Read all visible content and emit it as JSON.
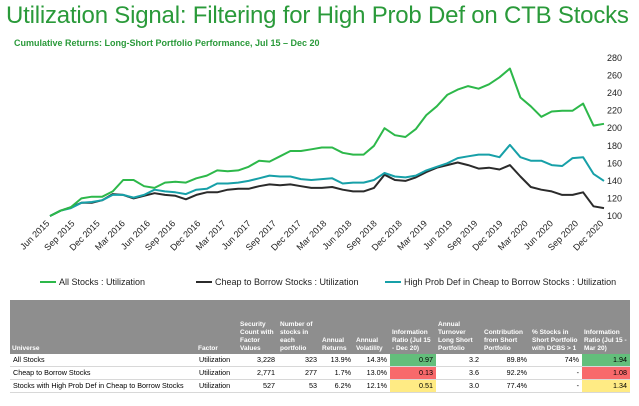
{
  "title": "Utilization Signal: Filtering for High Prob Def on CTB Stocks",
  "subtitle": "Cumulative Returns: Long-Short Portfolio Performance, Jul 15 – Dec 20",
  "colors": {
    "title": "#2a9a3a",
    "all_stocks": "#2db84a",
    "ctb": "#2b2b2b",
    "high_pd": "#17a0a8",
    "header_bg": "#8e8e8e",
    "good": "#63be7b",
    "mid": "#ffeb84",
    "bad": "#f8696b"
  },
  "chart_data": {
    "type": "line",
    "title": "Cumulative Returns: Long-Short Portfolio Performance, Jul 15 – Dec 20",
    "x_ticks": [
      "Jun 2015",
      "Sep 2015",
      "Dec 2015",
      "Mar 2016",
      "Jun 2016",
      "Sep 2016",
      "Dec 2016",
      "Mar 2017",
      "Jun 2017",
      "Sep 2017",
      "Dec 2017",
      "Mar 2018",
      "Jun 2018",
      "Sep 2018",
      "Dec 2018",
      "Mar 2019",
      "Jun 2019",
      "Sep 2019",
      "Dec 2019",
      "Mar 2020",
      "Jun 2020",
      "Sep 2020",
      "Dec 2020"
    ],
    "y_ticks": [
      100,
      120,
      140,
      160,
      180,
      200,
      220,
      240,
      260,
      280
    ],
    "ylim": [
      100,
      280
    ],
    "legend_position": "bottom",
    "grid": false,
    "series": [
      {
        "name": "All Stocks : Utilization",
        "color": "#2db84a",
        "values": [
          100,
          106,
          110,
          120,
          122,
          122,
          128,
          141,
          141,
          134,
          132,
          138,
          139,
          138,
          143,
          146,
          152,
          151,
          152,
          156,
          163,
          162,
          168,
          174,
          174,
          176,
          178,
          178,
          172,
          170,
          170,
          180,
          200,
          192,
          190,
          199,
          215,
          225,
          238,
          244,
          248,
          245,
          250,
          258,
          268,
          235,
          225,
          213,
          219,
          220,
          220,
          228,
          203,
          205
        ]
      },
      {
        "name": "Cheap to Borrow Stocks : Utilization",
        "color": "#2b2b2b",
        "values": [
          100,
          106,
          110,
          115,
          115,
          118,
          125,
          124,
          120,
          123,
          126,
          124,
          123,
          119,
          124,
          127,
          127,
          130,
          131,
          131,
          134,
          136,
          135,
          136,
          134,
          132,
          132,
          133,
          130,
          128,
          128,
          132,
          147,
          141,
          140,
          144,
          150,
          155,
          158,
          161,
          158,
          154,
          155,
          153,
          158,
          145,
          133,
          130,
          128,
          124,
          124,
          127,
          111,
          109
        ]
      },
      {
        "name": "High Prob Def in Cheap to Borrow Stocks : Utilization",
        "color": "#17a0a8",
        "values": [
          100,
          106,
          109,
          115,
          116,
          118,
          124,
          124,
          121,
          124,
          130,
          128,
          127,
          125,
          130,
          131,
          137,
          137,
          138,
          140,
          143,
          146,
          145,
          145,
          142,
          141,
          142,
          143,
          137,
          138,
          138,
          141,
          149,
          145,
          144,
          146,
          152,
          156,
          160,
          166,
          168,
          170,
          170,
          167,
          181,
          167,
          163,
          163,
          158,
          157,
          166,
          167,
          148,
          140
        ]
      }
    ]
  },
  "table": {
    "headers": [
      "Universe",
      "Factor",
      "Security Count with Factor Values",
      "Number of stocks in each portfolio",
      "Annual Returns",
      "Annual Volatility",
      "Information Ratio (Jul 15 - Dec 20)",
      "Annual Turnover Long Short Portfolio",
      "Contribution from Short Portfolio",
      "% Stocks in Short Portfolio with DCBS > 1",
      "Information Ratio (Jul 15 - Mar 20)"
    ],
    "rows": [
      {
        "universe": "All Stocks",
        "factor": "Utilization",
        "count": "3,228",
        "stocks": "323",
        "ret": "13.9%",
        "vol": "14.3%",
        "ir1": "0.97",
        "turnover": "3.2",
        "contrib": "89.8%",
        "pct": "74%",
        "ir2": "1.94"
      },
      {
        "universe": "Cheap to Borrow Stocks",
        "factor": "Utilization",
        "count": "2,771",
        "stocks": "277",
        "ret": "1.7%",
        "vol": "13.0%",
        "ir1": "0.13",
        "turnover": "3.6",
        "contrib": "92.2%",
        "pct": "-",
        "ir2": "1.08"
      },
      {
        "universe": "Stocks with High Prob Def in Cheap to Borrow Stocks",
        "factor": "Utilization",
        "count": "527",
        "stocks": "53",
        "ret": "6.2%",
        "vol": "12.1%",
        "ir1": "0.51",
        "turnover": "3.0",
        "contrib": "77.4%",
        "pct": "-",
        "ir2": "1.34"
      }
    ],
    "ir1_colors": [
      "#63be7b",
      "#f8696b",
      "#ffeb84"
    ],
    "ir2_colors": [
      "#63be7b",
      "#f8696b",
      "#ffeb84"
    ]
  }
}
